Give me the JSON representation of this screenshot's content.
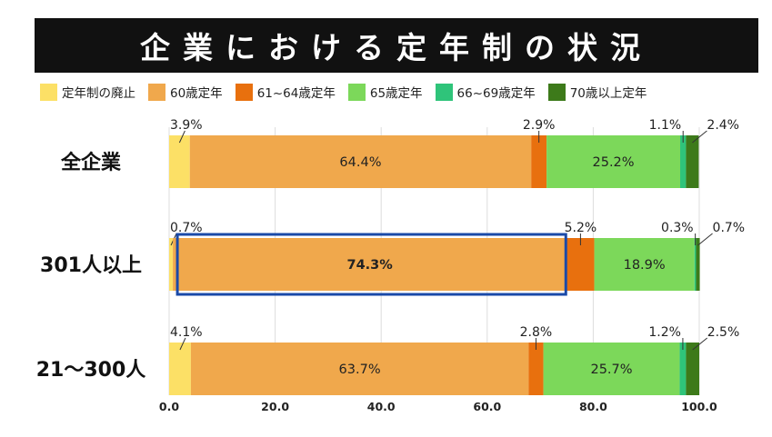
{
  "title": "企業における定年制の状況",
  "colors": {
    "abolished": "#fce066",
    "age60": "#f0a84c",
    "age61_64": "#e8700e",
    "age65": "#7cd85a",
    "age66_69": "#2fc47a",
    "age70plus": "#3d7a1a",
    "highlight": "#1a4aa8"
  },
  "chart_data": {
    "type": "bar",
    "orientation": "horizontal",
    "stacked": true,
    "title": "企業における定年制の状況",
    "categories": [
      "全企業",
      "301人以上",
      "21～300人"
    ],
    "series": [
      {
        "name": "定年制の廃止",
        "color_key": "abolished",
        "values": [
          3.9,
          0.7,
          4.1
        ],
        "labels": [
          "3.9%",
          "0.7%",
          "4.1%"
        ]
      },
      {
        "name": "60歳定年",
        "color_key": "age60",
        "values": [
          64.4,
          74.3,
          63.7
        ],
        "labels": [
          "64.4%",
          "74.3%",
          "63.7%"
        ]
      },
      {
        "name": "61~64歳定年",
        "color_key": "age61_64",
        "values": [
          2.9,
          5.2,
          2.8
        ],
        "labels": [
          "2.9%",
          "5.2%",
          "2.8%"
        ]
      },
      {
        "name": "65歳定年",
        "color_key": "age65",
        "values": [
          25.2,
          18.9,
          25.7
        ],
        "labels": [
          "25.2%",
          "18.9%",
          "25.7%"
        ]
      },
      {
        "name": "66~69歳定年",
        "color_key": "age66_69",
        "values": [
          1.1,
          0.3,
          1.2
        ],
        "labels": [
          "1.1%",
          "0.3%",
          "1.2%"
        ]
      },
      {
        "name": "70歳以上定年",
        "color_key": "age70plus",
        "values": [
          2.4,
          0.7,
          2.5
        ],
        "labels": [
          "2.4%",
          "0.7%",
          "2.5%"
        ]
      }
    ],
    "xlim": [
      0,
      100
    ],
    "xticks": [
      "0.0",
      "20.0",
      "40.0",
      "60.0",
      "80.0",
      "100.0"
    ],
    "highlight": {
      "category_index": 1,
      "series_index": 1
    }
  }
}
